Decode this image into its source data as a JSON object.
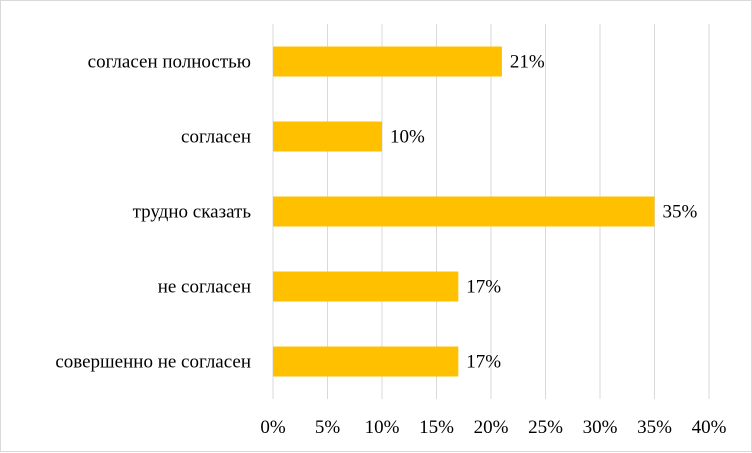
{
  "chart_data": {
    "type": "bar",
    "orientation": "horizontal",
    "categories": [
      "согласен полностью",
      "согласен",
      "трудно сказать",
      "не согласен",
      "совершенно не согласен"
    ],
    "values": [
      21,
      10,
      35,
      17,
      17
    ],
    "data_labels": [
      "21%",
      "10%",
      "35%",
      "17%",
      "17%"
    ],
    "x_ticks": [
      "0%",
      "5%",
      "10%",
      "15%",
      "20%",
      "25%",
      "30%",
      "35%",
      "40%"
    ],
    "xlim": [
      0,
      40
    ],
    "unit": "%",
    "grid": true,
    "bar_color": "#FFC000",
    "grid_color": "#d9d9d9",
    "legend": "none",
    "title": "",
    "xlabel": "",
    "ylabel": ""
  }
}
